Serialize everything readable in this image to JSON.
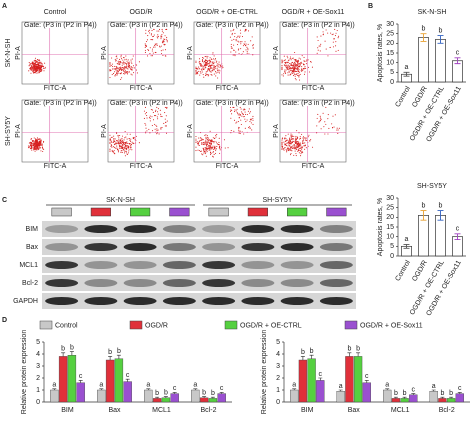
{
  "panel_labels": [
    "A",
    "B",
    "C",
    "D"
  ],
  "flow_cytometry": {
    "columns": [
      "Control",
      "OGD/R",
      "OGD/R + OE-CTRL",
      "OGD/R + OE-Sox11"
    ],
    "rows": [
      "SK-N-SH",
      "SH-SY5Y"
    ],
    "gate": "Gate: (P3 in (P2 in P4))",
    "x_label": "FITC-A",
    "y_label": "PI-A"
  },
  "western_blot": {
    "groups": [
      "SK-N-SH",
      "SH-SY5Y"
    ],
    "proteins": [
      "BIM",
      "Bax",
      "MCL1",
      "Bcl-2",
      "GAPDH"
    ],
    "lane_colors": [
      "#c8c8c8",
      "#e0303a",
      "#55d040",
      "#9a50d0"
    ]
  },
  "chart_data": [
    {
      "type": "bar",
      "title": "SK-N-SH",
      "y_label": "Apoptosis rates, %",
      "categories": [
        "Control",
        "OGD/R",
        "OGD/R + OE-CTRL",
        "OGD/R + OE-Sox11"
      ],
      "values": [
        4,
        23,
        22,
        11
      ],
      "errors": [
        1,
        2,
        2,
        1.5
      ],
      "letters": [
        "a",
        "b",
        "b",
        "c"
      ],
      "point_colors": [
        "#555555",
        "#e8a030",
        "#3060c0",
        "#a040c0"
      ],
      "ylim": [
        0,
        30
      ],
      "yticks": [
        0,
        5,
        10,
        15,
        20,
        25,
        30
      ]
    },
    {
      "type": "bar",
      "title": "SH-SY5Y",
      "y_label": "Apoptosis rates, %",
      "categories": [
        "Control",
        "OGD/R",
        "OGD/R + OE-CTRL",
        "OGD/R + OE-Sox11"
      ],
      "values": [
        5,
        21,
        21,
        10
      ],
      "errors": [
        1,
        2.5,
        2.5,
        1.5
      ],
      "letters": [
        "a",
        "b",
        "b",
        "c"
      ],
      "point_colors": [
        "#555555",
        "#e8a030",
        "#3060c0",
        "#a040c0"
      ],
      "ylim": [
        0,
        30
      ],
      "yticks": [
        0,
        5,
        10,
        15,
        20,
        25,
        30
      ]
    },
    {
      "type": "grouped_bar",
      "legend": true,
      "y_label": "Relative protein expression",
      "categories": [
        "BIM",
        "Bax",
        "MCL1",
        "Bcl-2"
      ],
      "ylim": [
        0,
        5
      ],
      "yticks": [
        0,
        1,
        2,
        3,
        4,
        5
      ],
      "series": [
        {
          "name": "Control",
          "color": "#c8c8c8",
          "values": [
            1,
            1,
            1,
            1
          ],
          "errors": [
            0.1,
            0.1,
            0.1,
            0.1
          ],
          "letters": [
            "a",
            "a",
            "a",
            "a"
          ]
        },
        {
          "name": "OGD/R",
          "color": "#e0303a",
          "values": [
            3.8,
            3.5,
            0.3,
            0.35
          ],
          "errors": [
            0.3,
            0.3,
            0.1,
            0.1
          ],
          "letters": [
            "b",
            "b",
            "b",
            "b"
          ]
        },
        {
          "name": "OGD/R + OE-CTRL",
          "color": "#55d040",
          "values": [
            3.9,
            3.6,
            0.35,
            0.3
          ],
          "errors": [
            0.3,
            0.3,
            0.1,
            0.1
          ],
          "letters": [
            "b",
            "b",
            "b",
            "b"
          ]
        },
        {
          "name": "OGD/R + OE-Sox11",
          "color": "#9a50d0",
          "values": [
            1.6,
            1.7,
            0.7,
            0.7
          ],
          "errors": [
            0.2,
            0.2,
            0.1,
            0.1
          ],
          "letters": [
            "c",
            "c",
            "c",
            "c"
          ]
        }
      ]
    },
    {
      "type": "grouped_bar",
      "legend": false,
      "y_label": "Relative protein expression",
      "categories": [
        "BIM",
        "Bax",
        "MCL1",
        "Bcl-2"
      ],
      "ylim": [
        0,
        5
      ],
      "yticks": [
        0,
        1,
        2,
        3,
        4,
        5
      ],
      "series": [
        {
          "color": "#c8c8c8",
          "values": [
            1,
            0.9,
            1,
            0.9
          ],
          "errors": [
            0.1,
            0.1,
            0.1,
            0.1
          ],
          "letters": [
            "a",
            "a",
            "a",
            "a"
          ]
        },
        {
          "color": "#e0303a",
          "values": [
            3.5,
            3.8,
            0.3,
            0.3
          ],
          "errors": [
            0.3,
            0.3,
            0.1,
            0.1
          ],
          "letters": [
            "b",
            "b",
            "b",
            "b"
          ]
        },
        {
          "color": "#55d040",
          "values": [
            3.6,
            3.8,
            0.3,
            0.3
          ],
          "errors": [
            0.3,
            0.3,
            0.1,
            0.1
          ],
          "letters": [
            "b",
            "b",
            "b",
            "b"
          ]
        },
        {
          "color": "#9a50d0",
          "values": [
            1.8,
            1.6,
            0.6,
            0.7
          ],
          "errors": [
            0.2,
            0.2,
            0.1,
            0.1
          ],
          "letters": [
            "c",
            "c",
            "c",
            "c"
          ]
        }
      ]
    }
  ]
}
